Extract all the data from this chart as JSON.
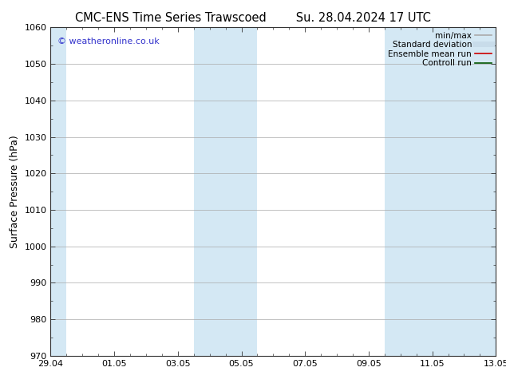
{
  "title_left": "CMC-ENS Time Series Trawscoed",
  "title_right": "Su. 28.04.2024 17 UTC",
  "ylabel": "Surface Pressure (hPa)",
  "ylim": [
    970,
    1060
  ],
  "yticks": [
    970,
    980,
    990,
    1000,
    1010,
    1020,
    1030,
    1040,
    1050,
    1060
  ],
  "xlim": [
    0,
    14
  ],
  "xtick_labels": [
    "29.04",
    "01.05",
    "03.05",
    "05.05",
    "07.05",
    "09.05",
    "11.05",
    "13.05"
  ],
  "xtick_positions": [
    0,
    2,
    4,
    6,
    8,
    10,
    12,
    14
  ],
  "shaded_bands": [
    {
      "x_start": 0.0,
      "x_end": 0.5
    },
    {
      "x_start": 4.5,
      "x_end": 6.5
    },
    {
      "x_start": 10.5,
      "x_end": 14.0
    }
  ],
  "watermark_text": "© weatheronline.co.uk",
  "watermark_color": "#3333cc",
  "legend_items": [
    {
      "label": "min/max",
      "color": "#aaaaaa",
      "lw": 1.2
    },
    {
      "label": "Standard deviation",
      "color": "#c8dcea",
      "lw": 5
    },
    {
      "label": "Ensemble mean run",
      "color": "#cc0000",
      "lw": 1.2
    },
    {
      "label": "Controll run",
      "color": "#005500",
      "lw": 1.2
    }
  ],
  "bg_color": "#ffffff",
  "shaded_color": "#d4e8f4",
  "tick_color": "#333333",
  "spine_color": "#333333",
  "title_fontsize": 10.5,
  "ylabel_fontsize": 9,
  "tick_fontsize": 8,
  "watermark_fontsize": 8,
  "legend_fontsize": 7.5
}
